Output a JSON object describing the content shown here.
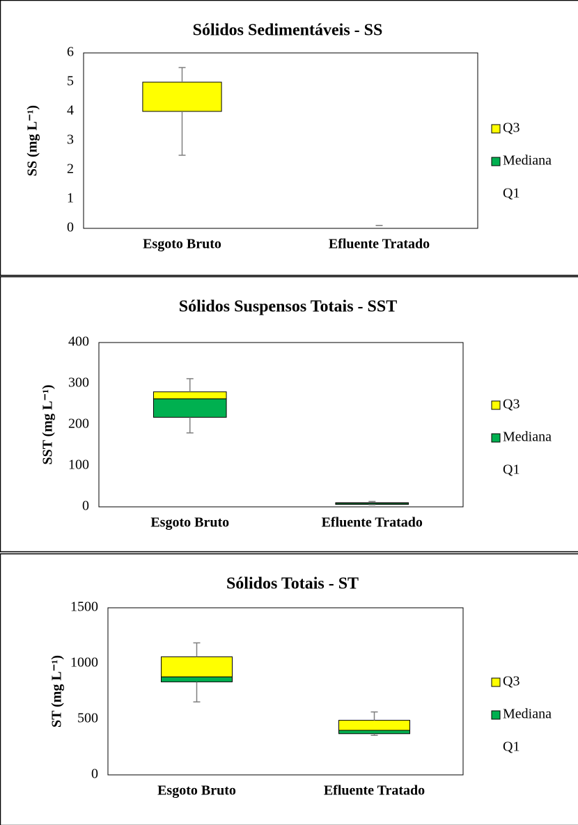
{
  "chart_data": [
    {
      "type": "box",
      "title": "Sólidos Sedimentáveis - SS",
      "y_label": "SS (mg L⁻¹)",
      "categories": [
        "Esgoto Bruto",
        "Efluente Tratado"
      ],
      "ylim": [
        0,
        6
      ],
      "yticks": [
        0,
        1,
        2,
        3,
        4,
        5,
        6
      ],
      "series": [
        {
          "name": "Q1",
          "color": null,
          "values": [
            4.0,
            0.1
          ],
          "errors": [
            1.5,
            0
          ]
        },
        {
          "name": "Mediana",
          "color": "#00b050",
          "values": [
            0,
            0
          ]
        },
        {
          "name": "Q3",
          "color": "#ffff00",
          "values": [
            1.0,
            0
          ],
          "errors": [
            0.5,
            0
          ]
        }
      ]
    },
    {
      "type": "box",
      "title": "Sólidos Suspensos Totais - SST",
      "y_label": "SST (mg L⁻¹)",
      "categories": [
        "Esgoto Bruto",
        "Efluente Tratado"
      ],
      "ylim": [
        0,
        400
      ],
      "yticks": [
        0,
        100,
        200,
        300,
        400
      ],
      "series": [
        {
          "name": "Q1",
          "color": null,
          "values": [
            218,
            6
          ],
          "errors": [
            38,
            1
          ]
        },
        {
          "name": "Mediana",
          "color": "#00b050",
          "values": [
            45,
            3
          ]
        },
        {
          "name": "Q3",
          "color": "#ffff00",
          "values": [
            17,
            1
          ],
          "errors": [
            32,
            3
          ]
        }
      ]
    },
    {
      "type": "box",
      "title": "Sólidos Totais - ST",
      "y_label": "ST (mg L⁻¹)",
      "categories": [
        "Esgoto Bruto",
        "Efluente Tratado"
      ],
      "ylim": [
        0,
        1500
      ],
      "yticks": [
        0,
        500,
        1000,
        1500
      ],
      "series": [
        {
          "name": "Q1",
          "color": null,
          "values": [
            835,
            370
          ],
          "errors": [
            180,
            15
          ]
        },
        {
          "name": "Mediana",
          "color": "#00b050",
          "values": [
            45,
            30
          ]
        },
        {
          "name": "Q3",
          "color": "#ffff00",
          "values": [
            180,
            90
          ],
          "errors": [
            125,
            75
          ]
        }
      ]
    }
  ]
}
